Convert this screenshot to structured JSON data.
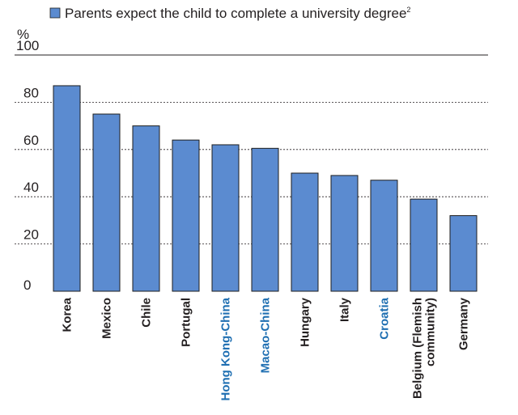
{
  "chart_data": {
    "type": "bar",
    "legend": {
      "label": "Parents expect the child to complete a university degree",
      "footnote": "2",
      "color": "#5b8bd0"
    },
    "unit": "%",
    "ylim": [
      0,
      100
    ],
    "yticks": [
      0,
      20,
      40,
      60,
      80,
      100
    ],
    "grid": "dashed horizontal at 20, 40, 60, 80; solid at 100",
    "categories": [
      {
        "label": "Korea",
        "highlight": false
      },
      {
        "label": "Mexico",
        "highlight": false
      },
      {
        "label": "Chile",
        "highlight": false
      },
      {
        "label": "Portugal",
        "highlight": false
      },
      {
        "label": "Hong Kong-China",
        "highlight": true
      },
      {
        "label": "Macao-China",
        "highlight": true
      },
      {
        "label": "Hungary",
        "highlight": false
      },
      {
        "label": "Italy",
        "highlight": false
      },
      {
        "label": "Croatia",
        "highlight": true
      },
      {
        "label": "Belgium (Flemish community)",
        "lines": [
          "Belgium (Flemish",
          "community)"
        ],
        "highlight": false
      },
      {
        "label": "Germany",
        "highlight": false
      }
    ],
    "values": [
      87,
      75,
      70,
      64,
      62,
      60.5,
      50,
      49,
      47,
      39,
      32
    ],
    "colors": {
      "bar": "#5b8bd0",
      "bar_edge": "#1e1e1e",
      "label": "#231f20",
      "highlight_label": "#1f6fb2"
    }
  }
}
